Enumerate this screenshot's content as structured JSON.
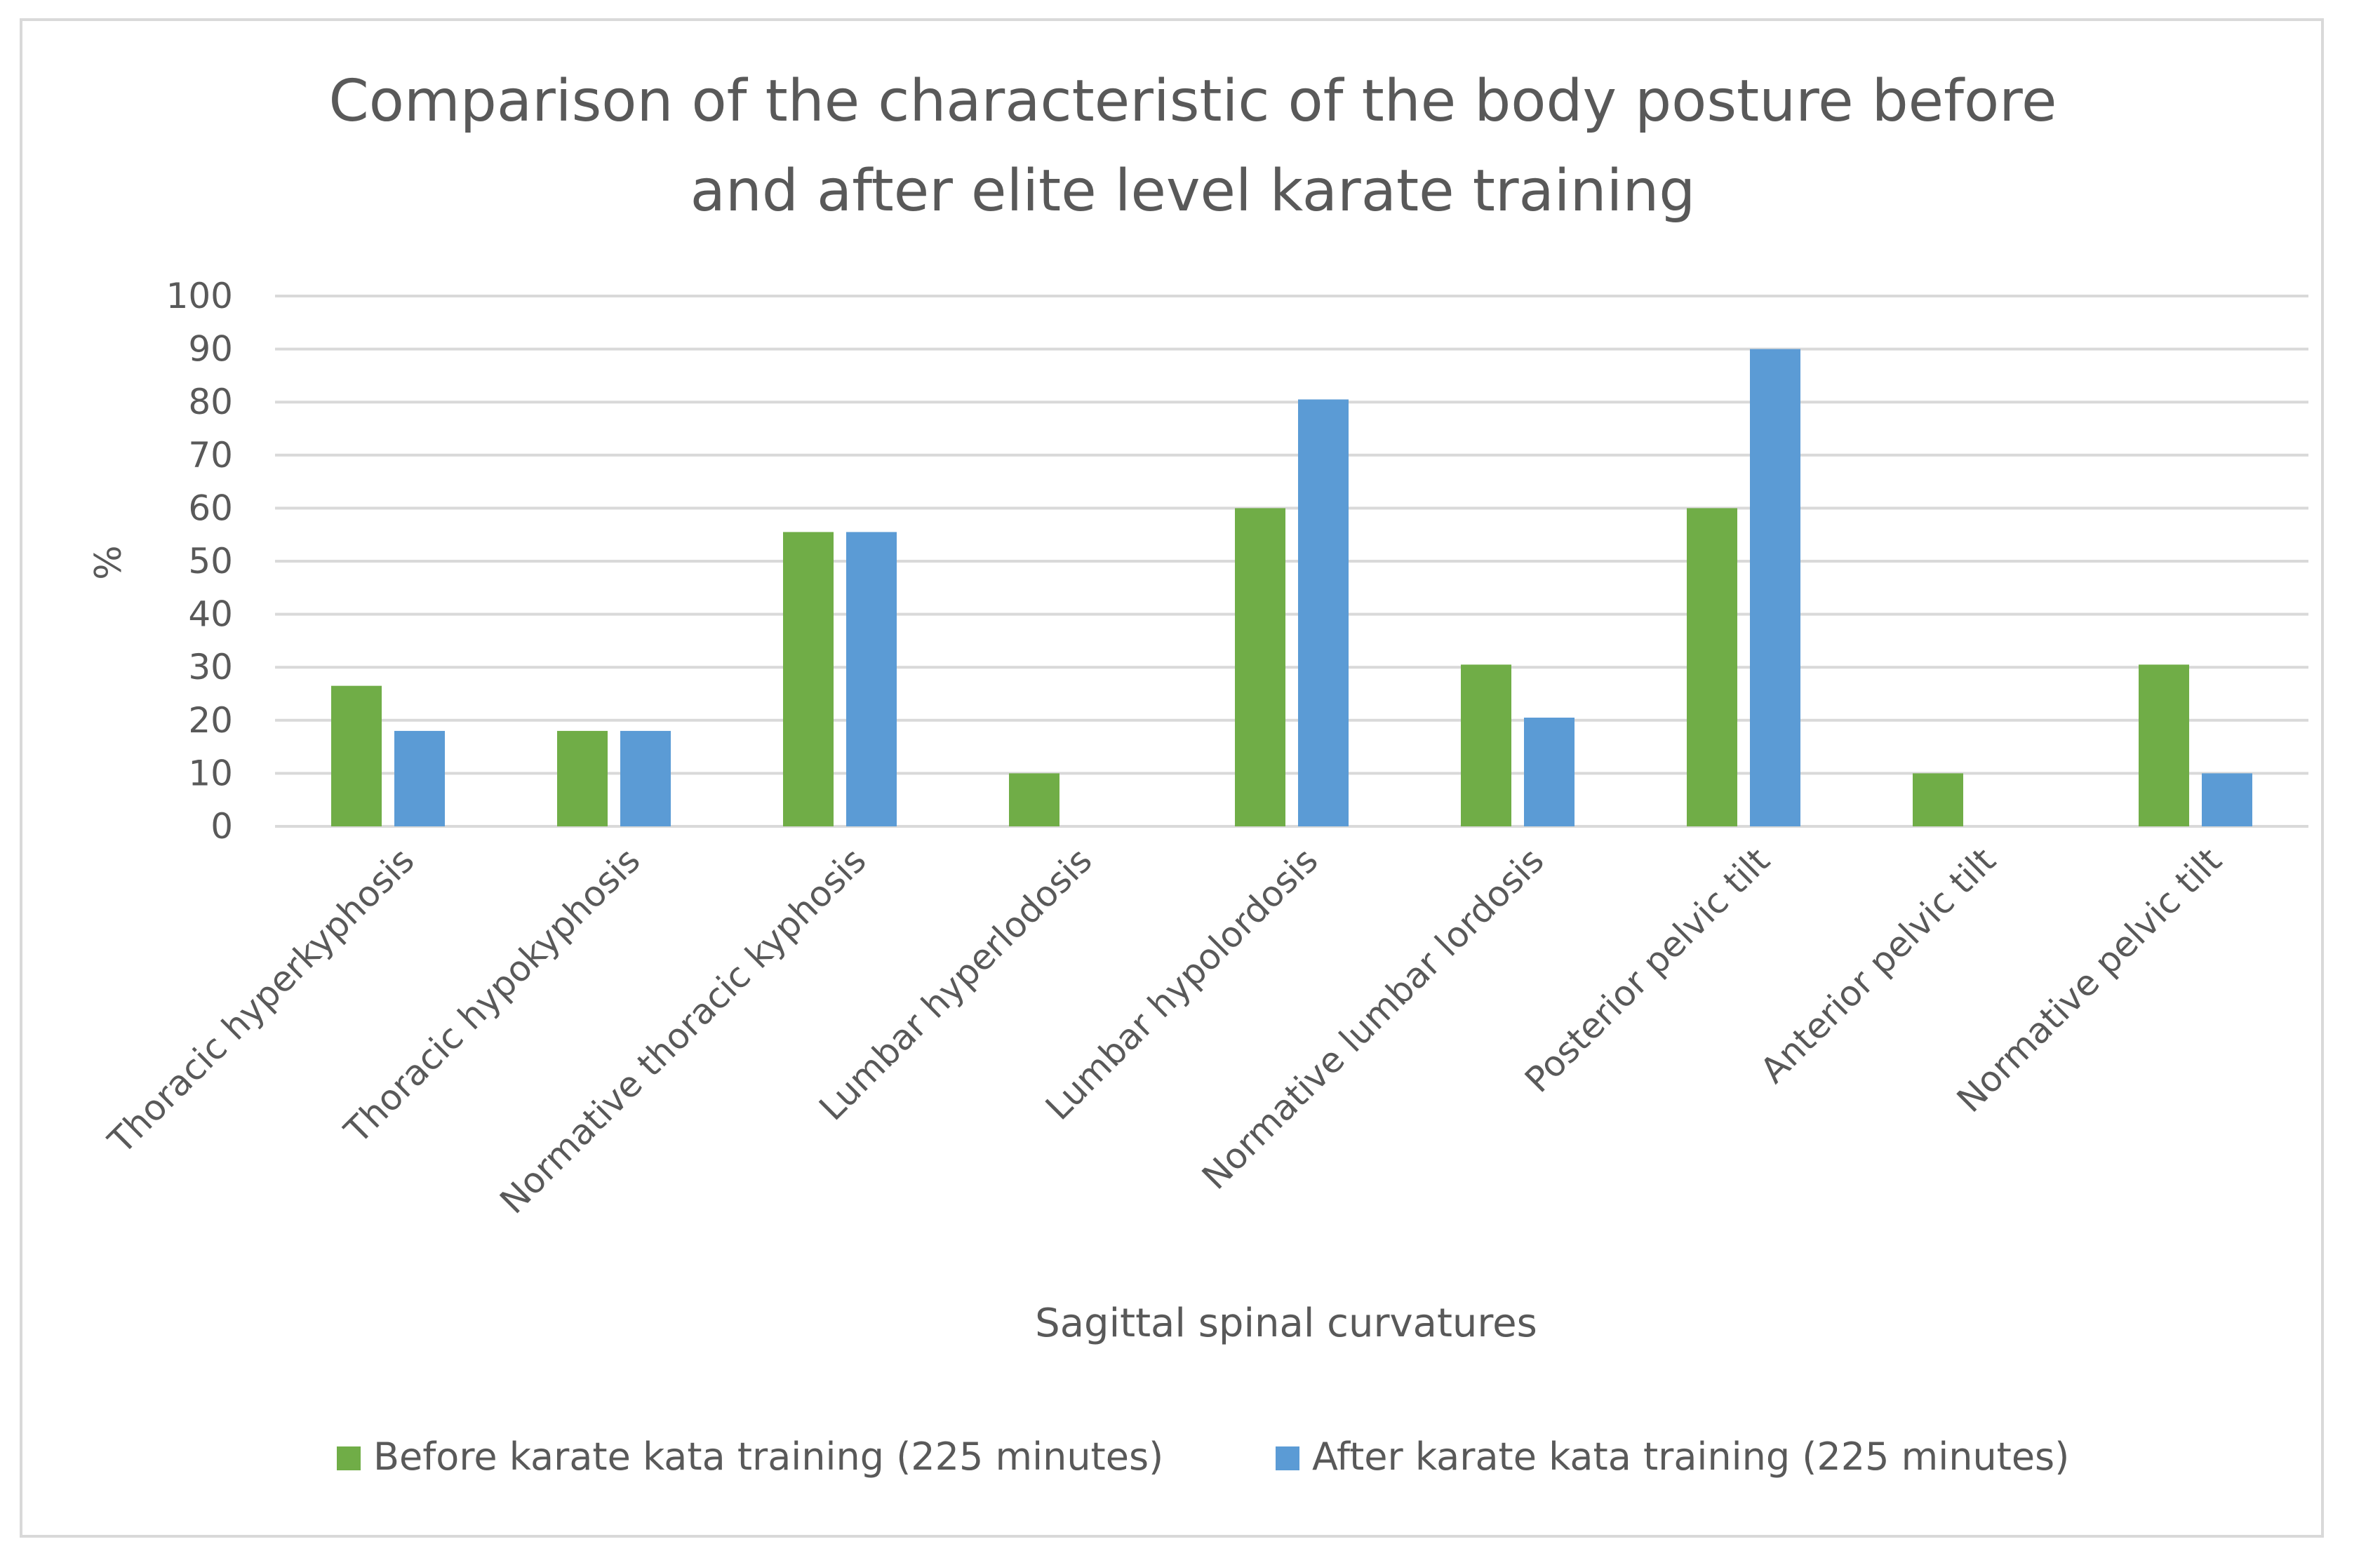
{
  "chart_data": {
    "type": "bar",
    "title_lines": [
      "Comparison of the characteristic of the body posture before",
      "and after elite level karate training"
    ],
    "xlabel": "Sagittal spinal curvatures",
    "ylabel": "%",
    "ylim": [
      0,
      100
    ],
    "yticks": [
      0,
      10,
      20,
      30,
      40,
      50,
      60,
      70,
      80,
      90,
      100
    ],
    "grid": true,
    "legend_position": "bottom",
    "categories": [
      "Thoracic hyperkyphosis",
      "Thoracic hypokyphosis",
      "Normative thoracic kyphosis",
      "Lumbar hyperlodosis",
      "Lumbar hypolordosis",
      "Normative lumbar lordosis",
      "Posterior pelvic tilt",
      "Anterior pelvic tilt",
      "Normative pelvic tilt"
    ],
    "series": [
      {
        "name": "Before karate kata training (225 minutes)",
        "color": "#70ad47",
        "values": [
          26.5,
          18,
          55.5,
          10,
          60,
          30.5,
          60,
          10,
          30.5
        ]
      },
      {
        "name": "After karate kata training (225 minutes)",
        "color": "#5b9bd5",
        "values": [
          18,
          18,
          55.5,
          0,
          80.5,
          20.5,
          90,
          0,
          10
        ]
      }
    ]
  }
}
